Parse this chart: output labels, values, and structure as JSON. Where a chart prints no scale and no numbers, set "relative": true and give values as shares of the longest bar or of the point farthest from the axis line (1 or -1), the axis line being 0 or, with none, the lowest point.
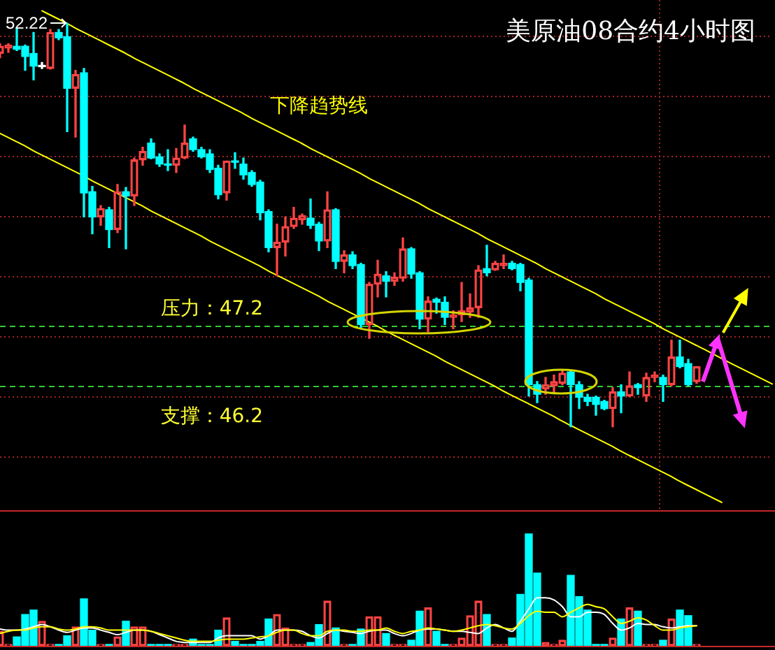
{
  "chart_data": [
    {
      "type": "candlestick",
      "title": "美原油08合约4小时图",
      "categories": [
        null,
        null,
        null,
        null,
        null,
        null,
        null,
        null,
        null,
        null,
        null,
        null,
        null,
        null,
        null,
        null,
        null,
        null,
        null,
        null,
        null,
        null,
        null,
        null,
        null,
        null,
        null,
        null,
        null,
        null,
        null,
        null,
        null,
        null,
        null,
        null,
        null,
        null,
        null,
        null,
        null,
        null,
        null,
        null,
        null,
        null,
        null,
        null,
        null,
        null,
        null,
        null,
        null,
        null,
        null,
        null,
        null,
        null,
        null,
        null,
        null,
        null,
        null,
        null,
        null,
        null,
        null,
        null,
        null,
        null,
        null,
        null,
        null,
        null,
        null,
        null,
        null,
        null,
        null,
        null,
        null,
        null,
        null,
        null,
        null,
        null,
        null,
        null,
        null,
        null,
        null,
        null,
        null
      ],
      "ohlc": [
        [
          51.72,
          51.88,
          51.65,
          51.84
        ],
        [
          51.81,
          51.88,
          51.74,
          51.86
        ],
        [
          51.84,
          52.14,
          51.77,
          51.79
        ],
        [
          51.84,
          51.86,
          51.44,
          51.67
        ],
        [
          51.72,
          52.07,
          51.28,
          51.51
        ],
        [
          51.52,
          51.57,
          51.47,
          51.5
        ],
        [
          51.47,
          52.12,
          51.46,
          52.07
        ],
        [
          52.07,
          52.12,
          51.95,
          51.98
        ],
        [
          52.0,
          52.22,
          50.42,
          51.14
        ],
        [
          51.14,
          51.44,
          50.33,
          51.37
        ],
        [
          51.4,
          51.47,
          49.0,
          49.4
        ],
        [
          49.42,
          49.51,
          48.72,
          49.0
        ],
        [
          49.0,
          49.19,
          48.86,
          49.14
        ],
        [
          49.12,
          49.16,
          48.49,
          48.79
        ],
        [
          48.79,
          49.54,
          48.74,
          49.42
        ],
        [
          49.42,
          49.49,
          48.47,
          49.35
        ],
        [
          49.35,
          49.98,
          49.19,
          49.95
        ],
        [
          49.95,
          50.16,
          49.86,
          50.09
        ],
        [
          50.23,
          50.3,
          49.97,
          49.98
        ],
        [
          50.0,
          50.05,
          49.84,
          49.88
        ],
        [
          49.88,
          50.12,
          49.77,
          49.86
        ],
        [
          49.86,
          50.14,
          49.74,
          49.98
        ],
        [
          49.98,
          50.53,
          49.97,
          50.23
        ],
        [
          50.3,
          50.33,
          50.09,
          50.12
        ],
        [
          50.12,
          50.16,
          49.98,
          50.0
        ],
        [
          50.05,
          50.12,
          49.74,
          49.79
        ],
        [
          49.81,
          49.86,
          49.3,
          49.37
        ],
        [
          49.4,
          49.93,
          49.28,
          49.93
        ],
        [
          49.93,
          50.07,
          49.81,
          49.91
        ],
        [
          49.88,
          49.98,
          49.63,
          49.7
        ],
        [
          49.74,
          49.77,
          49.51,
          49.54
        ],
        [
          49.58,
          49.61,
          48.95,
          49.07
        ],
        [
          49.09,
          49.12,
          48.42,
          48.49
        ],
        [
          48.49,
          48.88,
          48.02,
          48.58
        ],
        [
          48.58,
          49.0,
          48.35,
          48.84
        ],
        [
          48.84,
          49.16,
          48.81,
          48.98
        ],
        [
          48.95,
          49.05,
          48.88,
          49.02
        ],
        [
          48.98,
          49.3,
          48.81,
          48.86
        ],
        [
          48.88,
          48.91,
          48.44,
          48.6
        ],
        [
          48.6,
          49.42,
          48.49,
          49.12
        ],
        [
          49.12,
          49.14,
          48.14,
          48.26
        ],
        [
          48.26,
          48.44,
          48.07,
          48.37
        ],
        [
          48.37,
          48.42,
          48.14,
          48.19
        ],
        [
          48.21,
          48.23,
          47.14,
          47.21
        ],
        [
          47.21,
          47.91,
          46.98,
          47.88
        ],
        [
          47.88,
          48.28,
          47.67,
          48.05
        ],
        [
          48.02,
          48.09,
          47.67,
          47.93
        ],
        [
          47.93,
          48.07,
          47.86,
          48.0
        ],
        [
          47.98,
          48.65,
          47.93,
          48.47
        ],
        [
          48.47,
          48.49,
          47.98,
          48.05
        ],
        [
          48.07,
          48.09,
          47.14,
          47.3
        ],
        [
          47.3,
          47.67,
          47.09,
          47.6
        ],
        [
          47.63,
          47.65,
          47.4,
          47.58
        ],
        [
          47.58,
          47.67,
          47.21,
          47.33
        ],
        [
          47.33,
          47.44,
          47.14,
          47.37
        ],
        [
          47.37,
          47.91,
          47.26,
          47.44
        ],
        [
          47.42,
          47.72,
          47.33,
          47.49
        ],
        [
          47.49,
          48.19,
          47.33,
          48.12
        ],
        [
          48.14,
          48.53,
          48.02,
          48.07
        ],
        [
          48.12,
          48.26,
          48.11,
          48.23
        ],
        [
          48.19,
          48.37,
          48.14,
          48.23
        ],
        [
          48.23,
          48.26,
          48.12,
          48.14
        ],
        [
          48.21,
          48.23,
          47.77,
          47.91
        ],
        [
          47.95,
          47.98,
          46.02,
          46.21
        ],
        [
          46.21,
          46.26,
          45.91,
          46.05
        ],
        [
          46.14,
          46.33,
          46.05,
          46.21
        ],
        [
          46.19,
          46.37,
          46.07,
          46.26
        ],
        [
          46.23,
          46.44,
          46.21,
          46.4
        ],
        [
          46.42,
          46.44,
          45.51,
          46.21
        ],
        [
          46.21,
          46.26,
          45.81,
          46.0
        ],
        [
          46.0,
          46.05,
          45.86,
          45.93
        ],
        [
          46.0,
          46.02,
          45.7,
          45.88
        ],
        [
          45.93,
          45.95,
          45.79,
          45.81
        ],
        [
          45.81,
          46.16,
          45.51,
          46.09
        ],
        [
          46.09,
          46.21,
          45.74,
          46.02
        ],
        [
          46.02,
          46.42,
          46.01,
          46.19
        ],
        [
          46.21,
          46.23,
          46.05,
          46.16
        ],
        [
          46.02,
          46.4,
          45.93,
          46.33
        ],
        [
          46.33,
          46.42,
          46.26,
          46.37
        ],
        [
          46.33,
          46.37,
          45.93,
          46.21
        ],
        [
          46.21,
          46.95,
          46.19,
          46.67
        ],
        [
          46.67,
          46.95,
          46.49,
          46.51
        ],
        [
          46.56,
          46.63,
          46.19,
          46.21
        ],
        [
          46.26,
          46.51,
          46.23,
          46.51
        ],
        null,
        null,
        null,
        null,
        null,
        null,
        null,
        null,
        null
      ],
      "colors": [
        "#ff4444",
        "#ff4444",
        "#00ffff",
        "#00ffff",
        "#00ffff",
        "#ffffff",
        "#ff4444",
        "#00ffff",
        "#00ffff",
        "#ff4444",
        "#00ffff",
        "#00ffff",
        "#ff4444",
        "#00ffff",
        "#ff4444",
        "#00ffff",
        "#ff4444",
        "#ff4444",
        "#00ffff",
        "#00ffff",
        "#00ffff",
        "#ff4444",
        "#ff4444",
        "#00ffff",
        "#00ffff",
        "#00ffff",
        "#00ffff",
        "#ff4444",
        "#00ffff",
        "#00ffff",
        "#00ffff",
        "#00ffff",
        "#00ffff",
        "#ff4444",
        "#ff4444",
        "#ff4444",
        "#ff4444",
        "#00ffff",
        "#00ffff",
        "#ff4444",
        "#00ffff",
        "#ff4444",
        "#00ffff",
        "#00ffff",
        "#ff4444",
        "#ff4444",
        "#00ffff",
        "#ff4444",
        "#ff4444",
        "#00ffff",
        "#00ffff",
        "#ff4444",
        "#00ffff",
        "#00ffff",
        "#ff4444",
        "#ff4444",
        "#ff4444",
        "#ff4444",
        "#00ffff",
        "#ff4444",
        "#ff4444",
        "#00ffff",
        "#00ffff",
        "#00ffff",
        "#00ffff",
        "#ff4444",
        "#ff4444",
        "#ff4444",
        "#00ffff",
        "#00ffff",
        "#00ffff",
        "#00ffff",
        "#00ffff",
        "#ff4444",
        "#00ffff",
        "#ff4444",
        "#00ffff",
        "#ff4444",
        "#ff4444",
        "#00ffff",
        "#ff4444",
        "#00ffff",
        "#00ffff",
        "#ff4444",
        null,
        null,
        null,
        null,
        null,
        null,
        null,
        null,
        null
      ],
      "series": [
        {
          "type": "line",
          "name": "下降趋势线",
          "color": "#ffff00",
          "values": [
            null,
            null,
            null,
            null,
            null,
            52.43,
            52.36,
            52.29,
            52.22,
            52.14,
            52.07,
            52.0,
            51.93,
            51.86,
            51.79,
            51.72,
            51.64,
            51.57,
            51.5,
            51.43,
            51.36,
            51.29,
            51.22,
            51.14,
            51.07,
            51.0,
            50.93,
            50.86,
            50.79,
            50.72,
            50.64,
            50.57,
            50.5,
            50.43,
            50.36,
            50.29,
            50.22,
            50.14,
            50.07,
            50.0,
            49.93,
            49.86,
            49.79,
            49.72,
            49.64,
            49.57,
            49.5,
            49.43,
            49.36,
            49.29,
            49.22,
            49.14,
            49.07,
            49.0,
            48.93,
            48.86,
            48.79,
            48.72,
            48.64,
            48.57,
            48.5,
            48.43,
            48.36,
            48.29,
            48.22,
            48.14,
            48.07,
            48.0,
            47.93,
            47.86,
            47.79,
            47.72,
            47.64,
            47.57,
            47.5,
            47.43,
            47.36,
            47.29,
            47.22,
            47.14,
            47.07,
            47.0,
            46.93,
            46.86,
            46.79,
            null,
            null,
            46.57,
            46.5,
            46.43,
            46.36,
            46.29,
            46.22
          ]
        },
        {
          "type": "line",
          "color": "#ffff00",
          "values": [
            50.39,
            50.32,
            50.25,
            50.18,
            50.1,
            50.03,
            49.96,
            49.89,
            49.82,
            49.75,
            49.68,
            49.6,
            49.53,
            49.46,
            49.39,
            49.32,
            49.25,
            49.18,
            49.1,
            49.03,
            48.96,
            48.89,
            48.82,
            48.75,
            48.68,
            48.6,
            48.53,
            48.46,
            48.39,
            48.32,
            48.25,
            48.18,
            48.1,
            48.03,
            47.96,
            47.89,
            47.82,
            47.75,
            47.68,
            47.6,
            47.53,
            47.46,
            47.39,
            47.32,
            47.25,
            47.18,
            47.1,
            47.03,
            46.96,
            46.89,
            46.82,
            46.75,
            46.68,
            46.6,
            46.53,
            46.46,
            46.39,
            46.32,
            46.25,
            46.18,
            46.1,
            46.03,
            45.96,
            45.89,
            45.82,
            45.75,
            45.68,
            45.6,
            45.53,
            45.46,
            45.39,
            45.32,
            45.25,
            45.18,
            45.1,
            45.03,
            44.96,
            44.89,
            44.82,
            44.75,
            44.68,
            44.6,
            44.53,
            44.46,
            44.39,
            44.32,
            44.25,
            null,
            null,
            null,
            null,
            null,
            null
          ]
        }
      ],
      "ylim": [
        44.12,
        52.61
      ],
      "yticks": [
        {
          "value": 45,
          "label": null
        },
        {
          "value": 46,
          "label": null
        },
        {
          "value": 47,
          "label": null
        },
        {
          "value": 48,
          "label": null
        },
        {
          "value": 49,
          "label": null
        },
        {
          "value": 50,
          "label": null
        },
        {
          "value": 51,
          "label": null
        },
        {
          "value": 52,
          "label": null
        }
      ],
      "grid": "y",
      "tick_labels": false,
      "ref_lines": [
        {
          "axis": "y",
          "value": 47.2,
          "label": "压力：47.2",
          "color": "#33cc33",
          "line_style": "dashed"
        },
        {
          "axis": "y",
          "value": 46.2,
          "label": "支撑：46.2",
          "color": "#33cc33",
          "line_style": "dashed"
        }
      ],
      "annotations": [
        "52.22"
      ]
    },
    {
      "type": "bar",
      "relative": true,
      "tick_labels": false,
      "categories": [
        null,
        null,
        null,
        null,
        null,
        null,
        null,
        null,
        null,
        null,
        null,
        null,
        null,
        null,
        null,
        null,
        null,
        null,
        null,
        null,
        null,
        null,
        null,
        null,
        null,
        null,
        null,
        null,
        null,
        null,
        null,
        null,
        null,
        null,
        null,
        null,
        null,
        null,
        null,
        null,
        null,
        null,
        null,
        null,
        null,
        null,
        null,
        null,
        null,
        null,
        null,
        null,
        null,
        null,
        null,
        null,
        null,
        null,
        null,
        null,
        null,
        null,
        null,
        null,
        null,
        null,
        null,
        null,
        null,
        null,
        null,
        null,
        null,
        null,
        null,
        null,
        null,
        null,
        null,
        null,
        null,
        null,
        null,
        null,
        null,
        null,
        null,
        null,
        null,
        null,
        null,
        null,
        null
      ],
      "series": [
        {
          "type": "bar",
          "colors": [
            "#ff4444",
            "#ff4444",
            "#00ffff",
            "#00ffff",
            "#00ffff",
            "#ff4444",
            "#ff4444",
            "#00ffff",
            "#00ffff",
            "#ff4444",
            "#00ffff",
            "#00ffff",
            "#ff4444",
            "#00ffff",
            "#ff4444",
            "#00ffff",
            "#ff4444",
            "#ff4444",
            "#00ffff",
            "#00ffff",
            "#00ffff",
            "#ff4444",
            "#ff4444",
            "#00ffff",
            "#00ffff",
            "#00ffff",
            "#00ffff",
            "#ff4444",
            "#00ffff",
            "#00ffff",
            "#00ffff",
            "#00ffff",
            "#00ffff",
            "#ff4444",
            "#ff4444",
            "#ff4444",
            "#ff4444",
            "#00ffff",
            "#00ffff",
            "#ff4444",
            "#00ffff",
            "#ff4444",
            "#00ffff",
            "#00ffff",
            "#ff4444",
            "#ff4444",
            "#00ffff",
            "#ff4444",
            "#ff4444",
            "#00ffff",
            "#00ffff",
            "#ff4444",
            "#00ffff",
            "#00ffff",
            "#ff4444",
            "#ff4444",
            "#ff4444",
            "#ff4444",
            "#00ffff",
            "#ff4444",
            "#ff4444",
            "#00ffff",
            "#00ffff",
            "#00ffff",
            "#00ffff",
            "#ff4444",
            "#ff4444",
            "#ff4444",
            "#00ffff",
            "#00ffff",
            "#00ffff",
            "#00ffff",
            "#00ffff",
            "#ff4444",
            "#00ffff",
            "#ff4444",
            "#00ffff",
            "#ff4444",
            "#ff4444",
            "#00ffff",
            "#ff4444",
            "#00ffff",
            "#00ffff",
            "#ff4444",
            null,
            null,
            null,
            null,
            null,
            null,
            null,
            null,
            null
          ],
          "values": [
            0.13,
            0.01,
            0.08,
            0.28,
            0.32,
            0.22,
            0.01,
            0.01,
            0.09,
            0.17,
            0.42,
            0.14,
            0.01,
            0.01,
            0.08,
            0.22,
            0.17,
            0.17,
            0.01,
            0.01,
            0.01,
            0.01,
            0.01,
            0.06,
            0.01,
            0.01,
            0.14,
            0.25,
            0.04,
            0.01,
            0.01,
            0.04,
            0.24,
            0.28,
            0.16,
            0.01,
            0.01,
            0.03,
            0.19,
            0.4,
            0.16,
            0.01,
            0.01,
            0.15,
            0.26,
            0.26,
            0.11,
            0.01,
            0.01,
            0.05,
            0.31,
            0.34,
            0.13,
            0.01,
            0.01,
            0.07,
            0.27,
            0.4,
            0.28,
            0.01,
            0.01,
            0.07,
            0.46,
            1,
            0.65,
            0.03,
            0.01,
            0.05,
            0.63,
            0.44,
            0.32,
            0.01,
            0.01,
            0.07,
            0.24,
            0.34,
            0.31,
            0.01,
            0.01,
            0.05,
            0.24,
            0.32,
            0.27,
            0.01,
            null,
            null,
            null,
            null,
            null,
            null,
            null,
            null,
            null
          ]
        },
        {
          "type": "line",
          "color": "#ffff00",
          "values": [
            0.11,
            0.13,
            0.14,
            0.14,
            0.16,
            0.17,
            0.17,
            0.15,
            0.14,
            0.15,
            0.17,
            0.17,
            0.16,
            0.14,
            0.14,
            0.14,
            0.14,
            0.14,
            0.13,
            0.11,
            0.09,
            0.07,
            0.05,
            0.04,
            0.04,
            0.04,
            0.05,
            0.06,
            0.06,
            0.06,
            0.07,
            0.08,
            0.09,
            0.12,
            0.14,
            0.14,
            0.11,
            0.09,
            0.09,
            0.13,
            0.14,
            0.14,
            0.13,
            0.13,
            0.14,
            0.14,
            0.16,
            0.13,
            0.11,
            0.13,
            0.14,
            0.16,
            0.15,
            0.14,
            0.13,
            0.14,
            0.16,
            0.18,
            0.19,
            0.18,
            0.16,
            0.15,
            0.2,
            0.27,
            0.31,
            0.3,
            0.3,
            0.26,
            0.3,
            0.34,
            0.37,
            0.35,
            0.33,
            0.26,
            0.2,
            0.22,
            0.25,
            0.23,
            0.18,
            0.14,
            0.14,
            0.16,
            0.17,
            0.18,
            null,
            null,
            null,
            null,
            null,
            null,
            null,
            null,
            null
          ]
        },
        {
          "type": "line",
          "color": "#ffffff",
          "values": [
            0.15,
            0.14,
            0.14,
            0.15,
            0.17,
            0.19,
            0.17,
            0.14,
            0.12,
            0.14,
            0.16,
            0.16,
            0.14,
            0.12,
            0.1,
            0.12,
            0.14,
            0.14,
            0.13,
            0.1,
            0.07,
            0.04,
            0.03,
            0.03,
            0.03,
            0.03,
            0.07,
            0.09,
            0.09,
            0.09,
            0.09,
            0.06,
            0.09,
            0.14,
            0.14,
            0.14,
            0.13,
            0.09,
            0.07,
            0.11,
            0.14,
            0.13,
            0.12,
            0.11,
            0.13,
            0.14,
            0.14,
            0.11,
            0.09,
            0.11,
            0.14,
            0.15,
            0.15,
            0.14,
            0.13,
            0.13,
            0.12,
            0.11,
            0.16,
            0.19,
            0.16,
            0.13,
            0.22,
            0.33,
            0.43,
            0.43,
            0.41,
            0.35,
            0.26,
            0.26,
            0.3,
            0.3,
            0.28,
            0.2,
            0.14,
            0.16,
            0.2,
            0.19,
            0.19,
            0.17,
            0.16,
            0.17,
            0.18,
            0.18,
            null,
            null,
            null,
            null,
            null,
            null,
            null,
            null,
            null
          ]
        }
      ]
    }
  ]
}
